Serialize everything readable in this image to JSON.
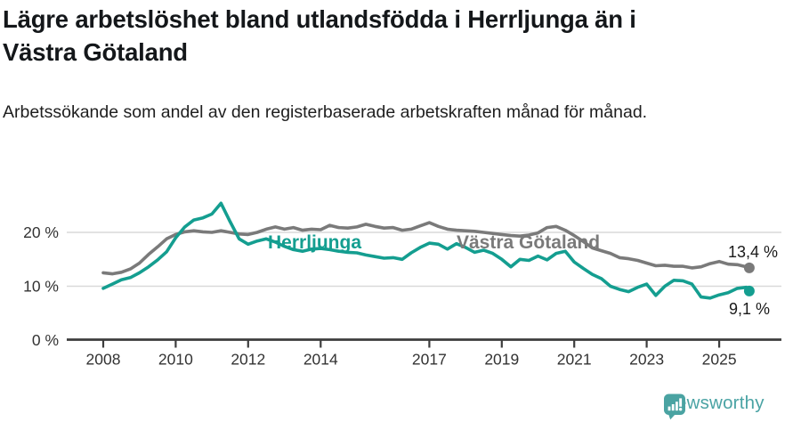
{
  "header": {
    "title_line1": "Lägre arbetslöshet bland utlandsfödda i Herrljunga än i",
    "title_line2": "Västra Götaland",
    "subtitle": "Arbetssökande som andel av den registerbaserade arbetskraften månad för månad."
  },
  "chart_data": {
    "type": "line",
    "title": "Lägre arbetslöshet bland utlandsfödda i Herrljunga än i Västra Götaland",
    "subtitle": "Arbetssökande som andel av den registerbaserade arbetskraften månad för månad.",
    "unit": "%",
    "grid": "horizontal",
    "legend_position": "inline-labels-on-lines",
    "xlim": [
      2007.8,
      2026.7
    ],
    "ylim": [
      0,
      27
    ],
    "y_ticks": [
      0,
      10,
      20
    ],
    "y_tick_labels": [
      "0 %",
      "10 %",
      "20 %"
    ],
    "x_ticks": [
      2008,
      2010,
      2012,
      2014,
      2017,
      2019,
      2021,
      2023,
      2025
    ],
    "x_tick_labels": [
      "2008",
      "2010",
      "2012",
      "2014",
      "2017",
      "2019",
      "2021",
      "2023",
      "2025"
    ],
    "x": [
      2008,
      2008.25,
      2008.5,
      2008.75,
      2009,
      2009.25,
      2009.5,
      2009.75,
      2010,
      2010.25,
      2010.5,
      2010.75,
      2011,
      2011.25,
      2011.5,
      2011.75,
      2012,
      2012.25,
      2012.5,
      2012.75,
      2013,
      2013.25,
      2013.5,
      2013.75,
      2014,
      2014.25,
      2014.5,
      2014.75,
      2015,
      2015.25,
      2015.5,
      2015.75,
      2016,
      2016.25,
      2016.5,
      2016.75,
      2017,
      2017.25,
      2017.5,
      2017.75,
      2018,
      2018.25,
      2018.5,
      2018.75,
      2019,
      2019.25,
      2019.5,
      2019.75,
      2020,
      2020.25,
      2020.5,
      2020.75,
      2021,
      2021.25,
      2021.5,
      2021.75,
      2022,
      2022.25,
      2022.5,
      2022.75,
      2023,
      2023.25,
      2023.5,
      2023.75,
      2024,
      2024.25,
      2024.5,
      2024.75,
      2025,
      2025.25,
      2025.5,
      2025.75,
      2025.83
    ],
    "series": [
      {
        "id": "herrljunga",
        "name": "Herrljunga",
        "color": "#149e90",
        "end_label": "9,1 %",
        "latest_value": 9.1,
        "values": [
          9.6,
          10.4,
          11.2,
          11.6,
          12.5,
          13.6,
          14.9,
          16.4,
          19.0,
          21.0,
          22.3,
          22.7,
          23.4,
          25.4,
          22.0,
          18.8,
          17.8,
          18.4,
          18.8,
          18.2,
          17.4,
          16.8,
          16.5,
          16.9,
          17.0,
          16.8,
          16.5,
          16.3,
          16.2,
          15.8,
          15.5,
          15.2,
          15.3,
          15.0,
          16.2,
          17.2,
          18.0,
          17.8,
          16.9,
          17.9,
          17.2,
          16.3,
          16.7,
          16.1,
          15.0,
          13.6,
          15.0,
          14.8,
          15.6,
          14.9,
          16.1,
          16.5,
          14.5,
          13.3,
          12.2,
          11.4,
          10.0,
          9.4,
          9.0,
          9.8,
          10.4,
          8.3,
          10.0,
          11.1,
          11.0,
          10.4,
          8.0,
          7.8,
          8.4,
          8.8,
          9.6,
          9.8,
          9.1
        ]
      },
      {
        "id": "vastra-gotaland",
        "name": "Västra Götaland",
        "color": "#7a7a7a",
        "end_label": "13,4 %",
        "latest_value": 13.4,
        "values": [
          12.5,
          12.3,
          12.6,
          13.2,
          14.3,
          15.9,
          17.3,
          18.8,
          19.6,
          20.1,
          20.3,
          20.1,
          20.0,
          20.3,
          20.0,
          19.7,
          19.6,
          20.0,
          20.6,
          21.0,
          20.6,
          20.9,
          20.4,
          20.6,
          20.5,
          21.3,
          20.9,
          20.8,
          21.0,
          21.5,
          21.1,
          20.8,
          20.9,
          20.4,
          20.6,
          21.2,
          21.8,
          21.1,
          20.6,
          20.4,
          20.3,
          20.2,
          20.0,
          19.8,
          19.6,
          19.4,
          19.3,
          19.5,
          19.9,
          20.9,
          21.1,
          20.4,
          19.4,
          18.3,
          17.1,
          16.6,
          16.1,
          15.3,
          15.1,
          14.8,
          14.3,
          13.8,
          13.9,
          13.7,
          13.7,
          13.4,
          13.6,
          14.2,
          14.6,
          14.1,
          14.0,
          13.6,
          13.4
        ]
      }
    ],
    "style": {
      "grid_color": "#d9d9d9",
      "axis_color": "#3d3d3d",
      "tick_text_color": "#333333",
      "value_label_color": "#1a1a1a"
    }
  },
  "footer": {
    "brand": "Newsworthy",
    "brand_color": "#4aa3a4",
    "logo_icon": "bar-chart-speech-bubble-icon"
  }
}
